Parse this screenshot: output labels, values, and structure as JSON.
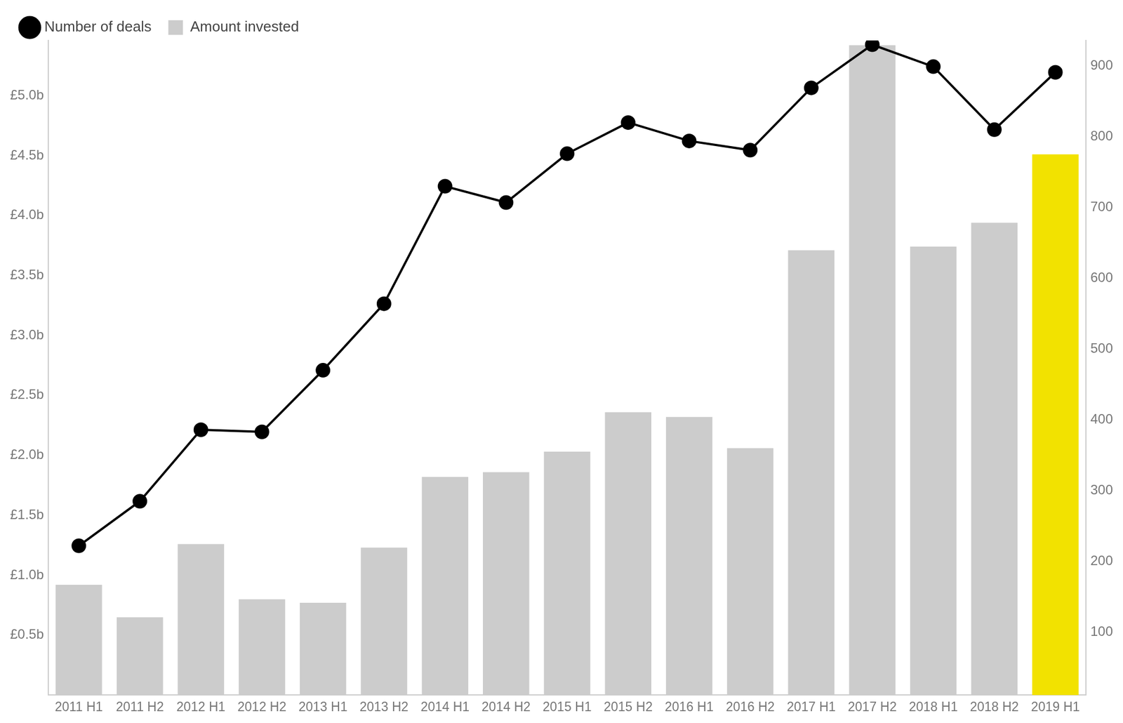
{
  "chart_data": {
    "type": "bar",
    "categories": [
      "2011 H1",
      "2011 H2",
      "2012 H1",
      "2012 H2",
      "2013 H1",
      "2013 H2",
      "2014 H1",
      "2014 H2",
      "2015 H1",
      "2015 H2",
      "2016 H1",
      "2016 H2",
      "2017 H1",
      "2017 H2",
      "2018 H1",
      "2018 H2",
      "2019 H1"
    ],
    "series": [
      {
        "name": "Amount invested",
        "type": "bar",
        "marker": "square",
        "colors": [
          "#cccccc",
          "#cccccc",
          "#cccccc",
          "#cccccc",
          "#cccccc",
          "#cccccc",
          "#cccccc",
          "#cccccc",
          "#cccccc",
          "#cccccc",
          "#cccccc",
          "#cccccc",
          "#cccccc",
          "#cccccc",
          "#cccccc",
          "#cccccc",
          "#f2e200"
        ],
        "values": [
          0.92,
          0.65,
          1.26,
          0.8,
          0.77,
          1.23,
          1.82,
          1.86,
          2.03,
          2.36,
          2.32,
          2.06,
          3.71,
          5.42,
          3.74,
          3.94,
          4.51
        ]
      },
      {
        "name": "Number of deals",
        "type": "line",
        "axis": "y2",
        "color": "#000000",
        "marker": "circle",
        "line_style": "solid",
        "values": [
          222,
          285,
          386,
          383,
          470,
          564,
          730,
          707,
          776,
          820,
          794,
          781,
          869,
          930,
          899,
          810,
          891
        ]
      }
    ],
    "ylim": [
      0,
      5.46
    ],
    "yticks": [
      {
        "value": 0.5,
        "label": "£0.5b"
      },
      {
        "value": 1.0,
        "label": "£1.0b"
      },
      {
        "value": 1.5,
        "label": "£1.5b"
      },
      {
        "value": 2.0,
        "label": "£2.0b"
      },
      {
        "value": 2.5,
        "label": "£2.5b"
      },
      {
        "value": 3.0,
        "label": "£3.0b"
      },
      {
        "value": 3.5,
        "label": "£3.5b"
      },
      {
        "value": 4.0,
        "label": "£4.0b"
      },
      {
        "value": 4.5,
        "label": "£4.5b"
      },
      {
        "value": 5.0,
        "label": "£5.0b"
      }
    ],
    "y2lim": [
      11,
      936
    ],
    "y2ticks": [
      100,
      200,
      300,
      400,
      500,
      600,
      700,
      800,
      900
    ],
    "grid": false,
    "legend": "top-left"
  }
}
